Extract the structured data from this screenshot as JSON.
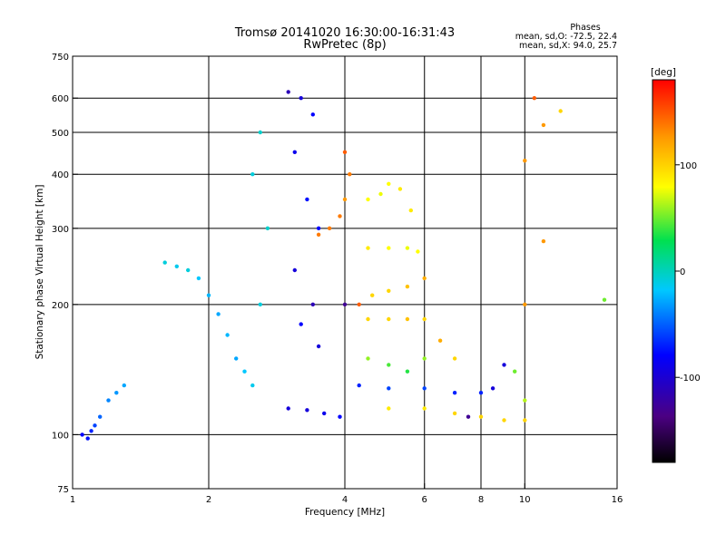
{
  "chart_data": {
    "type": "scatter",
    "title": "Tromsø 20141020 16:30:00-16:31:43",
    "subtitle": "RwPretec (8p)",
    "legend_text": {
      "heading": "Phases",
      "line1": "mean, sd,O: -72.5, 22.4",
      "line2": "mean, sd,X:  94.0, 25.7"
    },
    "xlabel": "Frequency [MHz]",
    "ylabel": "Stationary phase Virtual Height [km]",
    "x_scale": "log",
    "y_scale": "log",
    "xlim": [
      1,
      16
    ],
    "ylim": [
      75,
      750
    ],
    "x_ticks": [
      1,
      2,
      4,
      6,
      8,
      10,
      16
    ],
    "x_tick_labels": [
      "1",
      "2",
      "4",
      "6",
      "8",
      "10",
      "16"
    ],
    "y_ticks": [
      75,
      100,
      200,
      300,
      400,
      500,
      600,
      750
    ],
    "y_tick_labels": [
      "75",
      "100",
      "200",
      "300",
      "400",
      "500",
      "600",
      "750"
    ],
    "x_grid": [
      2,
      4,
      6,
      8,
      10
    ],
    "y_grid": [
      100,
      200,
      300,
      400,
      500,
      600
    ],
    "grid": true,
    "colorbar": {
      "label": "[deg]",
      "range": [
        -180,
        180
      ],
      "ticks": [
        -100,
        0,
        100
      ],
      "tick_labels": [
        "-100",
        "0",
        "100"
      ],
      "colormap": "rainbow (black-purple-blue-cyan-green-yellow-orange-red)"
    },
    "series": [
      {
        "name": "",
        "points": [
          [
            1.05,
            100,
            -100
          ],
          [
            1.08,
            98,
            -95
          ],
          [
            1.1,
            102,
            -90
          ],
          [
            1.12,
            105,
            -80
          ],
          [
            1.15,
            110,
            -70
          ],
          [
            1.2,
            120,
            -60
          ],
          [
            1.25,
            125,
            -55
          ],
          [
            1.3,
            130,
            -50
          ]
        ]
      },
      {
        "name": "",
        "points": [
          [
            1.6,
            250,
            -30
          ],
          [
            1.7,
            245,
            -35
          ],
          [
            1.8,
            240,
            -30
          ],
          [
            1.9,
            230,
            -40
          ],
          [
            2.0,
            210,
            -45
          ],
          [
            2.1,
            190,
            -50
          ],
          [
            2.2,
            170,
            -45
          ],
          [
            2.3,
            150,
            -50
          ],
          [
            2.4,
            140,
            -40
          ],
          [
            2.5,
            130,
            -35
          ],
          [
            2.6,
            200,
            -30
          ],
          [
            2.7,
            300,
            -25
          ],
          [
            2.5,
            400,
            -30
          ],
          [
            2.6,
            500,
            -25
          ]
        ]
      },
      {
        "name": "",
        "points": [
          [
            3.0,
            620,
            -120
          ],
          [
            3.2,
            600,
            -110
          ],
          [
            3.4,
            550,
            -100
          ],
          [
            3.1,
            450,
            -105
          ],
          [
            3.3,
            350,
            -95
          ],
          [
            3.5,
            300,
            -100
          ],
          [
            3.1,
            240,
            -110
          ],
          [
            3.4,
            200,
            -120
          ],
          [
            3.2,
            180,
            -100
          ],
          [
            3.5,
            160,
            -110
          ]
        ]
      },
      {
        "name": "",
        "points": [
          [
            3.0,
            115,
            -110
          ],
          [
            3.3,
            114,
            -110
          ],
          [
            3.6,
            112,
            -105
          ],
          [
            3.9,
            110,
            -100
          ]
        ]
      },
      {
        "name": "",
        "points": [
          [
            3.5,
            290,
            140
          ],
          [
            3.7,
            300,
            140
          ],
          [
            3.9,
            320,
            140
          ],
          [
            4.0,
            350,
            130
          ],
          [
            4.1,
            400,
            140
          ],
          [
            4.0,
            450,
            150
          ]
        ]
      },
      {
        "name": "",
        "points": [
          [
            4.5,
            350,
            80
          ],
          [
            4.8,
            360,
            75
          ],
          [
            5.0,
            380,
            80
          ],
          [
            5.3,
            370,
            90
          ],
          [
            5.6,
            330,
            90
          ]
        ]
      },
      {
        "name": "",
        "points": [
          [
            4.5,
            270,
            90
          ],
          [
            5.0,
            270,
            80
          ],
          [
            5.5,
            270,
            75
          ],
          [
            5.8,
            265,
            80
          ]
        ]
      },
      {
        "name": "",
        "points": [
          [
            4.0,
            200,
            -130
          ],
          [
            4.3,
            200,
            150
          ],
          [
            4.6,
            210,
            100
          ],
          [
            5.0,
            215,
            100
          ],
          [
            5.5,
            220,
            110
          ],
          [
            6.0,
            230,
            120
          ]
        ]
      },
      {
        "name": "",
        "points": [
          [
            4.5,
            185,
            100
          ],
          [
            5.0,
            185,
            100
          ],
          [
            5.5,
            185,
            110
          ],
          [
            6.0,
            185,
            100
          ]
        ]
      },
      {
        "name": "",
        "points": [
          [
            4.5,
            150,
            50
          ],
          [
            5.0,
            145,
            30
          ],
          [
            5.5,
            140,
            20
          ],
          [
            6.0,
            150,
            50
          ],
          [
            6.5,
            165,
            120
          ],
          [
            7.0,
            150,
            100
          ]
        ]
      },
      {
        "name": "",
        "points": [
          [
            4.3,
            130,
            -90
          ],
          [
            5.0,
            128,
            -80
          ],
          [
            6.0,
            128,
            -80
          ],
          [
            7.0,
            125,
            -90
          ],
          [
            8.0,
            125,
            -90
          ]
        ]
      },
      {
        "name": "",
        "points": [
          [
            5.0,
            115,
            90
          ],
          [
            6.0,
            115,
            90
          ],
          [
            7.0,
            112,
            100
          ],
          [
            8.0,
            110,
            100
          ],
          [
            9.0,
            108,
            100
          ],
          [
            10.0,
            108,
            100
          ]
        ]
      },
      {
        "name": "",
        "points": [
          [
            7.5,
            110,
            -130
          ],
          [
            8.5,
            128,
            -110
          ],
          [
            9.0,
            145,
            -110
          ],
          [
            9.5,
            140,
            40
          ],
          [
            10.0,
            120,
            60
          ]
        ]
      },
      {
        "name": "",
        "points": [
          [
            10.0,
            430,
            130
          ],
          [
            10.5,
            600,
            150
          ],
          [
            11.0,
            520,
            130
          ],
          [
            12.0,
            560,
            100
          ],
          [
            10.0,
            200,
            130
          ],
          [
            11.0,
            280,
            130
          ],
          [
            15.0,
            205,
            40
          ]
        ]
      }
    ]
  }
}
